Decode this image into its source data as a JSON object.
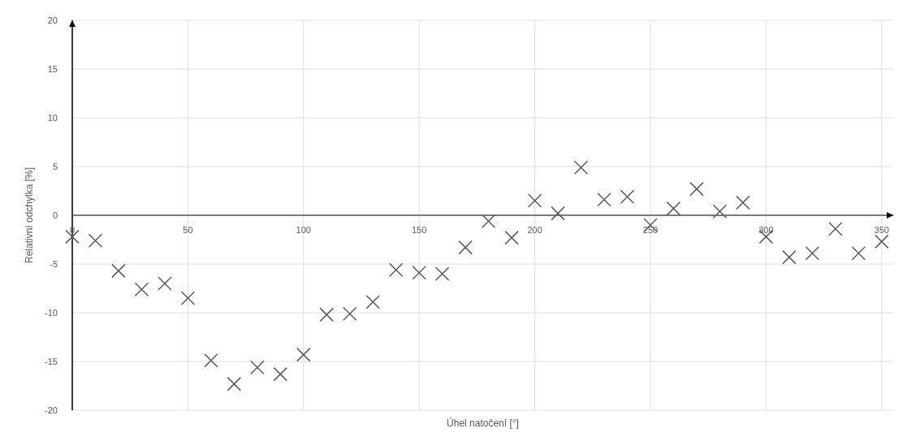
{
  "chart_data": {
    "type": "scatter",
    "xlabel": "Úhel natočení [°]",
    "ylabel": "Relativní odchylka [%]",
    "x": [
      0,
      10,
      20,
      30,
      40,
      50,
      60,
      70,
      80,
      90,
      100,
      110,
      120,
      130,
      140,
      150,
      160,
      170,
      180,
      190,
      200,
      210,
      220,
      230,
      240,
      250,
      260,
      270,
      280,
      290,
      300,
      310,
      320,
      330,
      340,
      350
    ],
    "series": [
      {
        "color": "#5a5a66",
        "values": [
          -2.2,
          -2.6,
          -5.7,
          -7.6,
          -7.0,
          -8.5,
          -14.9,
          -17.3,
          -15.6,
          -16.3,
          -14.3,
          -10.2,
          -10.1,
          -8.9,
          -5.6,
          -5.9,
          -6.0,
          -3.3,
          -0.6,
          -2.3,
          1.5,
          0.2,
          4.9,
          1.6,
          1.9,
          -1.0,
          0.7,
          2.7,
          0.4,
          1.3,
          -2.2,
          -4.3,
          -3.9,
          -1.4,
          -3.9,
          -2.7
        ]
      }
    ],
    "xlim": [
      0,
      355
    ],
    "xticks": [
      0,
      50,
      100,
      150,
      200,
      250,
      300,
      350
    ],
    "ylim": [
      -20,
      20
    ],
    "yticks": [
      -20,
      -15,
      -10,
      -5,
      0,
      5,
      10,
      15,
      20
    ],
    "grid": true,
    "marker": "cross"
  }
}
